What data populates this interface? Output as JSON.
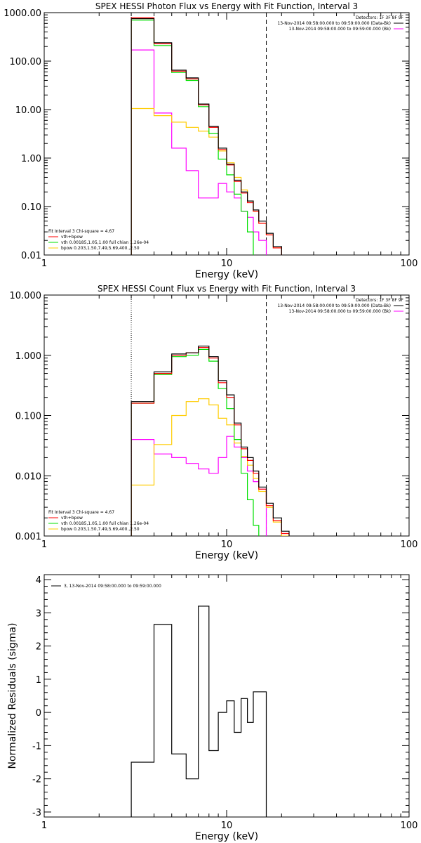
{
  "colors": {
    "data": "#000000",
    "total": "#ff0000",
    "vth": "#00e000",
    "bpow": "#ffcc00",
    "background": "#ff00ff"
  },
  "chart_data": [
    {
      "type": "line",
      "step": true,
      "title": "SPEX HESSI Photon Flux vs Energy with Fit Function, Interval 3",
      "xlabel": "Energy (keV)",
      "ylabel": "",
      "xscale": "log",
      "yscale": "log",
      "xlim": [
        1,
        100
      ],
      "ylim": [
        0.01,
        1000
      ],
      "xticks": [
        {
          "v": 1,
          "label": "1"
        },
        {
          "v": 10,
          "label": "10"
        },
        {
          "v": 100,
          "label": "100"
        }
      ],
      "yticks": [
        {
          "v": 0.01,
          "label": "0.01"
        },
        {
          "v": 0.1,
          "label": "0.10"
        },
        {
          "v": 1,
          "label": "1.00"
        },
        {
          "v": 10,
          "label": "10.00"
        },
        {
          "v": 100,
          "label": "100.00"
        },
        {
          "v": 1000,
          "label": "1000.00"
        }
      ],
      "vlines": [
        {
          "x": 3.0,
          "style": "dotted"
        },
        {
          "x": 16.5,
          "style": "dashed"
        }
      ],
      "legend_top": [
        "Detectors: 1F 3F 8F 9F",
        "13-Nov-2014 09:58:00.000 to 09:59:00.000 (Data-Bk)",
        "13-Nov-2014 09:58:00.000 to 09:59:00.000 (Bk)"
      ],
      "legend_bottom": [
        "Fit Interval 3   Chi-square = 4.67",
        "vth+bpow",
        "vth 0.00185,1.05,1.00  full chian 1.26e-04",
        "bpow 0.203,1.50,7.49,5.69,400.,2.50"
      ],
      "x_edges": [
        3,
        4,
        5,
        6,
        7,
        8,
        9,
        10,
        11,
        12,
        13,
        14,
        15,
        16.5,
        18,
        20
      ],
      "series": [
        {
          "key": "data",
          "values": [
            750,
            240,
            65,
            45,
            13,
            4.5,
            1.6,
            0.75,
            0.35,
            0.2,
            0.13,
            0.085,
            0.05,
            0.028,
            0.015
          ]
        },
        {
          "key": "total",
          "values": [
            780,
            230,
            62,
            43,
            12.5,
            4.3,
            1.5,
            0.72,
            0.33,
            0.19,
            0.12,
            0.08,
            0.045,
            0.026,
            0.014
          ]
        },
        {
          "key": "vth",
          "values": [
            700,
            210,
            58,
            40,
            11.5,
            3.2,
            0.95,
            0.45,
            0.18,
            0.08,
            0.03
          ]
        },
        {
          "key": "bpow",
          "values": [
            10.5,
            7.5,
            5.5,
            4.3,
            3.6,
            2.7,
            1.4,
            0.8,
            0.4,
            0.22,
            0.13,
            0.08,
            0.045,
            0.026,
            0.014
          ]
        },
        {
          "key": "background",
          "values": [
            170,
            8.5,
            1.6,
            0.55,
            0.15,
            0.15,
            0.3,
            0.2,
            0.15,
            0.08,
            0.06,
            0.03,
            0.02
          ]
        }
      ]
    },
    {
      "type": "line",
      "step": true,
      "title": "SPEX HESSI Count Flux vs Energy with Fit Function, Interval 3",
      "xlabel": "Energy (keV)",
      "ylabel": "",
      "xscale": "log",
      "yscale": "log",
      "xlim": [
        1,
        100
      ],
      "ylim": [
        0.001,
        10
      ],
      "xticks": [
        {
          "v": 1,
          "label": "1"
        },
        {
          "v": 10,
          "label": "10"
        },
        {
          "v": 100,
          "label": "100"
        }
      ],
      "yticks": [
        {
          "v": 0.001,
          "label": "0.001"
        },
        {
          "v": 0.01,
          "label": "0.010"
        },
        {
          "v": 0.1,
          "label": "0.100"
        },
        {
          "v": 1,
          "label": "1.000"
        },
        {
          "v": 10,
          "label": "10.000"
        }
      ],
      "vlines": [
        {
          "x": 3.0,
          "style": "dotted"
        },
        {
          "x": 16.5,
          "style": "dashed"
        }
      ],
      "legend_top": [
        "Detectors: 1F 3F 8F 9F",
        "13-Nov-2014 09:58:00.000 to 09:59:00.000 (Data-Bk)",
        "13-Nov-2014 09:58:00.000 to 09:59:00.000 (Bk)"
      ],
      "legend_bottom": [
        "Fit Interval 3   Chi-square = 4.67",
        "vth+bpow",
        "vth 0.00185,1.05,1.00  full chian 1.26e-04",
        "bpow 0.203,1.50,7.49,5.69,400.,2.50"
      ],
      "x_edges": [
        3,
        4,
        5,
        6,
        7,
        8,
        9,
        10,
        11,
        12,
        13,
        14,
        15,
        16.5,
        18,
        20,
        22
      ],
      "series": [
        {
          "key": "data",
          "values": [
            0.17,
            0.53,
            1.05,
            1.1,
            1.42,
            0.95,
            0.38,
            0.22,
            0.075,
            0.03,
            0.02,
            0.012,
            0.0065,
            0.0035,
            0.002,
            0.0012
          ]
        },
        {
          "key": "total",
          "values": [
            0.16,
            0.5,
            1.0,
            1.1,
            1.35,
            0.9,
            0.35,
            0.2,
            0.07,
            0.028,
            0.018,
            0.011,
            0.006,
            0.0032,
            0.0018,
            0.0011
          ]
        },
        {
          "key": "vth",
          "values": [
            0.16,
            0.48,
            0.95,
            1.0,
            1.25,
            0.8,
            0.28,
            0.13,
            0.04,
            0.011,
            0.004,
            0.0015
          ]
        },
        {
          "key": "bpow",
          "values": [
            0.007,
            0.033,
            0.1,
            0.17,
            0.19,
            0.15,
            0.09,
            0.07,
            0.035,
            0.021,
            0.015,
            0.009,
            0.0055,
            0.003,
            0.0017,
            0.001
          ]
        },
        {
          "key": "background",
          "values": [
            0.04,
            0.023,
            0.02,
            0.016,
            0.013,
            0.011,
            0.02,
            0.045,
            0.03,
            0.02,
            0.012,
            0.008,
            0.006
          ]
        }
      ]
    },
    {
      "type": "line",
      "step": true,
      "title": "",
      "xlabel": "Energy (keV)",
      "ylabel": "Normalized Residuals (sigma)",
      "xscale": "log",
      "yscale": "linear",
      "xlim": [
        1,
        100
      ],
      "ylim": [
        -3.15,
        4.15
      ],
      "xticks": [
        {
          "v": 1,
          "label": "1"
        },
        {
          "v": 10,
          "label": "10"
        },
        {
          "v": 100,
          "label": "100"
        }
      ],
      "yticks": [
        {
          "v": -3,
          "label": "-3"
        },
        {
          "v": -2,
          "label": "-2"
        },
        {
          "v": -1,
          "label": "-1"
        },
        {
          "v": 0,
          "label": "0"
        },
        {
          "v": 1,
          "label": "1"
        },
        {
          "v": 2,
          "label": "2"
        },
        {
          "v": 3,
          "label": "3"
        },
        {
          "v": 4,
          "label": "4"
        }
      ],
      "vlines": [],
      "legend_top": [],
      "legend_bottom": [],
      "legend_residual": "3, 13-Nov-2014 09:58:00.000 to 09:59:00.000",
      "x_edges": [
        3,
        4,
        5,
        6,
        7,
        8,
        9,
        10,
        11,
        12,
        13,
        14,
        15,
        16.5
      ],
      "series": [
        {
          "key": "data",
          "values": [
            -1.5,
            2.65,
            -1.25,
            -2.0,
            3.2,
            -1.15,
            0.0,
            0.35,
            -0.6,
            0.42,
            -0.3,
            0.62,
            0.62
          ]
        }
      ]
    }
  ]
}
